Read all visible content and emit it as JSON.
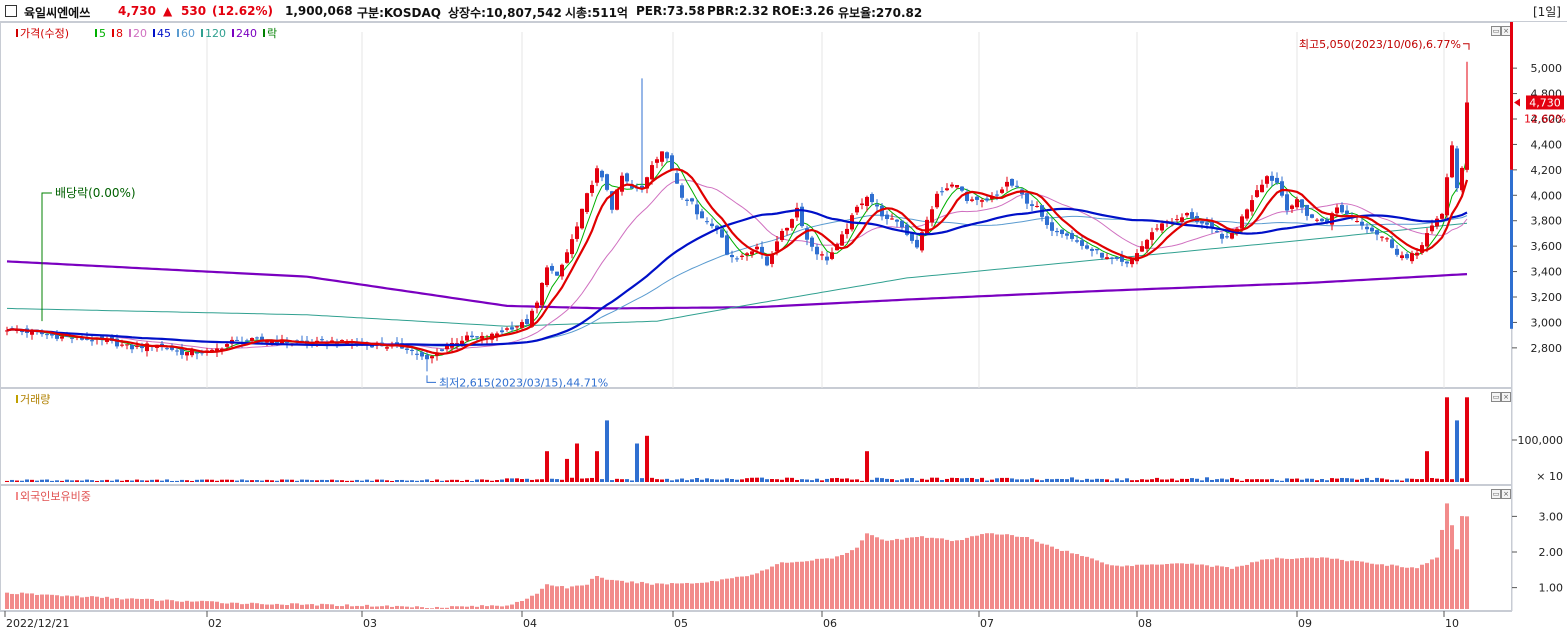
{
  "header": {
    "stock_name": "육일씨엔에쓰",
    "price": "4,730",
    "change_arrow": "▲",
    "change": "530",
    "change_pct": "(12.62%)",
    "volume": "1,900,068",
    "market": "구분:KOSDAQ",
    "shares": "상장수:10,807,542",
    "market_cap": "시총:511억",
    "per": "PER:73.58",
    "pbr": "PBR:2.32",
    "roe": "ROE:3.26",
    "float_ratio": "유보율:270.82",
    "period": "[1일]"
  },
  "colors": {
    "up": "#e3000f",
    "down": "#2f6fd0",
    "ma5": "#00b000",
    "ma8": "#e00000",
    "ma20": "#d070c0",
    "ma45": "#0010c8",
    "ma60": "#5a9bd0",
    "ma120": "#30a090",
    "ma240": "#7a00c0",
    "foreign": "#f28b8b"
  },
  "chart_data": [
    {
      "type": "candlestick",
      "legend": [
        {
          "label": "가격(수정)",
          "color": "#d00000"
        },
        {
          "label": "5",
          "color": "#00b000"
        },
        {
          "label": "8",
          "color": "#e00000"
        },
        {
          "label": "20",
          "color": "#d070c0"
        },
        {
          "label": "45",
          "color": "#0010c8"
        },
        {
          "label": "60",
          "color": "#5a9bd0"
        },
        {
          "label": "120",
          "color": "#30a090"
        },
        {
          "label": "240",
          "color": "#7a00c0"
        },
        {
          "label": "락",
          "color": "#008000"
        }
      ],
      "ylim": [
        2500,
        5300
      ],
      "yticks": [
        "5,000",
        "4,800",
        "4,600",
        "4,400",
        "4,200",
        "4,000",
        "3,800",
        "3,600",
        "3,400",
        "3,200",
        "3,000",
        "2,800"
      ],
      "x_labels": [
        "2022/12/21",
        "02",
        "03",
        "04",
        "05",
        "06",
        "07",
        "08",
        "09",
        "10"
      ],
      "annotations": {
        "high": "최고5,050(2023/10/06),6.77%",
        "low": "최저2,615(2023/03/15),44.71%",
        "dividend": "배당락(0.00%)",
        "current_price": "4,730",
        "current_pct": "12.62%"
      },
      "close_keypoints": [
        [
          0,
          2950
        ],
        [
          10,
          2890
        ],
        [
          20,
          2850
        ],
        [
          25,
          2800
        ],
        [
          30,
          2830
        ],
        [
          35,
          2760
        ],
        [
          41,
          2770
        ],
        [
          45,
          2850
        ],
        [
          50,
          2860
        ],
        [
          55,
          2850
        ],
        [
          60,
          2830
        ],
        [
          65,
          2850
        ],
        [
          70,
          2830
        ],
        [
          75,
          2820
        ],
        [
          80,
          2800
        ],
        [
          84,
          2700
        ],
        [
          88,
          2820
        ],
        [
          92,
          2880
        ],
        [
          96,
          2880
        ],
        [
          100,
          2950
        ],
        [
          104,
          3000
        ],
        [
          106,
          3150
        ],
        [
          108,
          3450
        ],
        [
          110,
          3350
        ],
        [
          112,
          3550
        ],
        [
          114,
          3750
        ],
        [
          116,
          4000
        ],
        [
          118,
          4200
        ],
        [
          120,
          4050
        ],
        [
          121,
          3900
        ],
        [
          123,
          4150
        ],
        [
          125,
          4050
        ],
        [
          127,
          4050
        ],
        [
          129,
          4250
        ],
        [
          131,
          4350
        ],
        [
          133,
          4200
        ],
        [
          135,
          4000
        ],
        [
          137,
          3950
        ],
        [
          138,
          3850
        ],
        [
          140,
          3800
        ],
        [
          142,
          3750
        ],
        [
          144,
          3550
        ],
        [
          146,
          3500
        ],
        [
          148,
          3550
        ],
        [
          150,
          3600
        ],
        [
          152,
          3450
        ],
        [
          154,
          3650
        ],
        [
          156,
          3750
        ],
        [
          158,
          3900
        ],
        [
          160,
          3650
        ],
        [
          162,
          3550
        ],
        [
          164,
          3500
        ],
        [
          166,
          3600
        ],
        [
          168,
          3750
        ],
        [
          170,
          3900
        ],
        [
          172,
          4000
        ],
        [
          174,
          3900
        ],
        [
          176,
          3800
        ],
        [
          178,
          3800
        ],
        [
          180,
          3700
        ],
        [
          182,
          3600
        ],
        [
          184,
          3800
        ],
        [
          186,
          4000
        ],
        [
          188,
          4050
        ],
        [
          190,
          4100
        ],
        [
          192,
          3950
        ],
        [
          194,
          3950
        ],
        [
          196,
          3950
        ],
        [
          198,
          4000
        ],
        [
          200,
          4100
        ],
        [
          202,
          4050
        ],
        [
          204,
          3950
        ],
        [
          206,
          3900
        ],
        [
          208,
          3750
        ],
        [
          212,
          3700
        ],
        [
          215,
          3600
        ],
        [
          218,
          3550
        ],
        [
          220,
          3500
        ],
        [
          222,
          3480
        ],
        [
          224,
          3450
        ],
        [
          226,
          3550
        ],
        [
          228,
          3650
        ],
        [
          230,
          3750
        ],
        [
          232,
          3800
        ],
        [
          234,
          3800
        ],
        [
          236,
          3850
        ],
        [
          238,
          3800
        ],
        [
          240,
          3750
        ],
        [
          242,
          3700
        ],
        [
          244,
          3650
        ],
        [
          246,
          3750
        ],
        [
          248,
          3900
        ],
        [
          250,
          4050
        ],
        [
          252,
          4150
        ],
        [
          254,
          4100
        ],
        [
          256,
          3900
        ],
        [
          258,
          3950
        ],
        [
          260,
          3850
        ],
        [
          262,
          3800
        ],
        [
          264,
          3800
        ],
        [
          266,
          3900
        ],
        [
          268,
          3850
        ],
        [
          270,
          3800
        ],
        [
          272,
          3750
        ],
        [
          274,
          3700
        ],
        [
          276,
          3650
        ],
        [
          278,
          3550
        ],
        [
          280,
          3500
        ],
        [
          282,
          3550
        ],
        [
          284,
          3700
        ],
        [
          286,
          3800
        ],
        [
          287,
          3850
        ],
        [
          288,
          4150
        ],
        [
          289,
          4400
        ],
        [
          290,
          4050
        ],
        [
          291,
          4200
        ],
        [
          292,
          4730
        ]
      ],
      "ma240_keypoints": [
        [
          0,
          3480
        ],
        [
          60,
          3360
        ],
        [
          100,
          3130
        ],
        [
          120,
          3110
        ],
        [
          150,
          3120
        ],
        [
          180,
          3180
        ],
        [
          220,
          3250
        ],
        [
          260,
          3310
        ],
        [
          292,
          3380
        ]
      ],
      "ma120_keypoints": [
        [
          0,
          3110
        ],
        [
          60,
          3060
        ],
        [
          100,
          2970
        ],
        [
          130,
          3010
        ],
        [
          150,
          3150
        ],
        [
          180,
          3350
        ],
        [
          220,
          3500
        ],
        [
          260,
          3650
        ],
        [
          292,
          3780
        ]
      ]
    },
    {
      "type": "bar",
      "label": "거래량",
      "yticks": [
        "100,000",
        "× 10"
      ],
      "spikes": [
        [
          108,
          4
        ],
        [
          112,
          3
        ],
        [
          114,
          5
        ],
        [
          118,
          4
        ],
        [
          120,
          8
        ],
        [
          126,
          5
        ],
        [
          128,
          6
        ],
        [
          172,
          4
        ],
        [
          284,
          4
        ],
        [
          288,
          11
        ],
        [
          290,
          8
        ],
        [
          292,
          11
        ]
      ]
    },
    {
      "type": "bar",
      "label": "외국인보유비중",
      "yticks": [
        "3.00",
        "2.00",
        "1.00"
      ],
      "ylim": [
        0.4,
        3.6
      ],
      "keypoints": [
        [
          0,
          0.85
        ],
        [
          15,
          0.75
        ],
        [
          30,
          0.65
        ],
        [
          50,
          0.55
        ],
        [
          70,
          0.5
        ],
        [
          85,
          0.45
        ],
        [
          100,
          0.5
        ],
        [
          106,
          0.8
        ],
        [
          108,
          1.1
        ],
        [
          112,
          1.0
        ],
        [
          116,
          1.1
        ],
        [
          118,
          1.35
        ],
        [
          120,
          1.2
        ],
        [
          130,
          1.1
        ],
        [
          140,
          1.15
        ],
        [
          150,
          1.4
        ],
        [
          155,
          1.7
        ],
        [
          160,
          1.75
        ],
        [
          166,
          1.85
        ],
        [
          170,
          2.1
        ],
        [
          172,
          2.55
        ],
        [
          176,
          2.3
        ],
        [
          182,
          2.45
        ],
        [
          190,
          2.3
        ],
        [
          196,
          2.55
        ],
        [
          204,
          2.4
        ],
        [
          210,
          2.1
        ],
        [
          222,
          1.6
        ],
        [
          235,
          1.7
        ],
        [
          245,
          1.55
        ],
        [
          252,
          1.8
        ],
        [
          262,
          1.85
        ],
        [
          272,
          1.7
        ],
        [
          282,
          1.55
        ],
        [
          286,
          1.85
        ],
        [
          288,
          3.35
        ],
        [
          290,
          2.1
        ],
        [
          291,
          3.0
        ],
        [
          292,
          3.0
        ]
      ]
    }
  ]
}
